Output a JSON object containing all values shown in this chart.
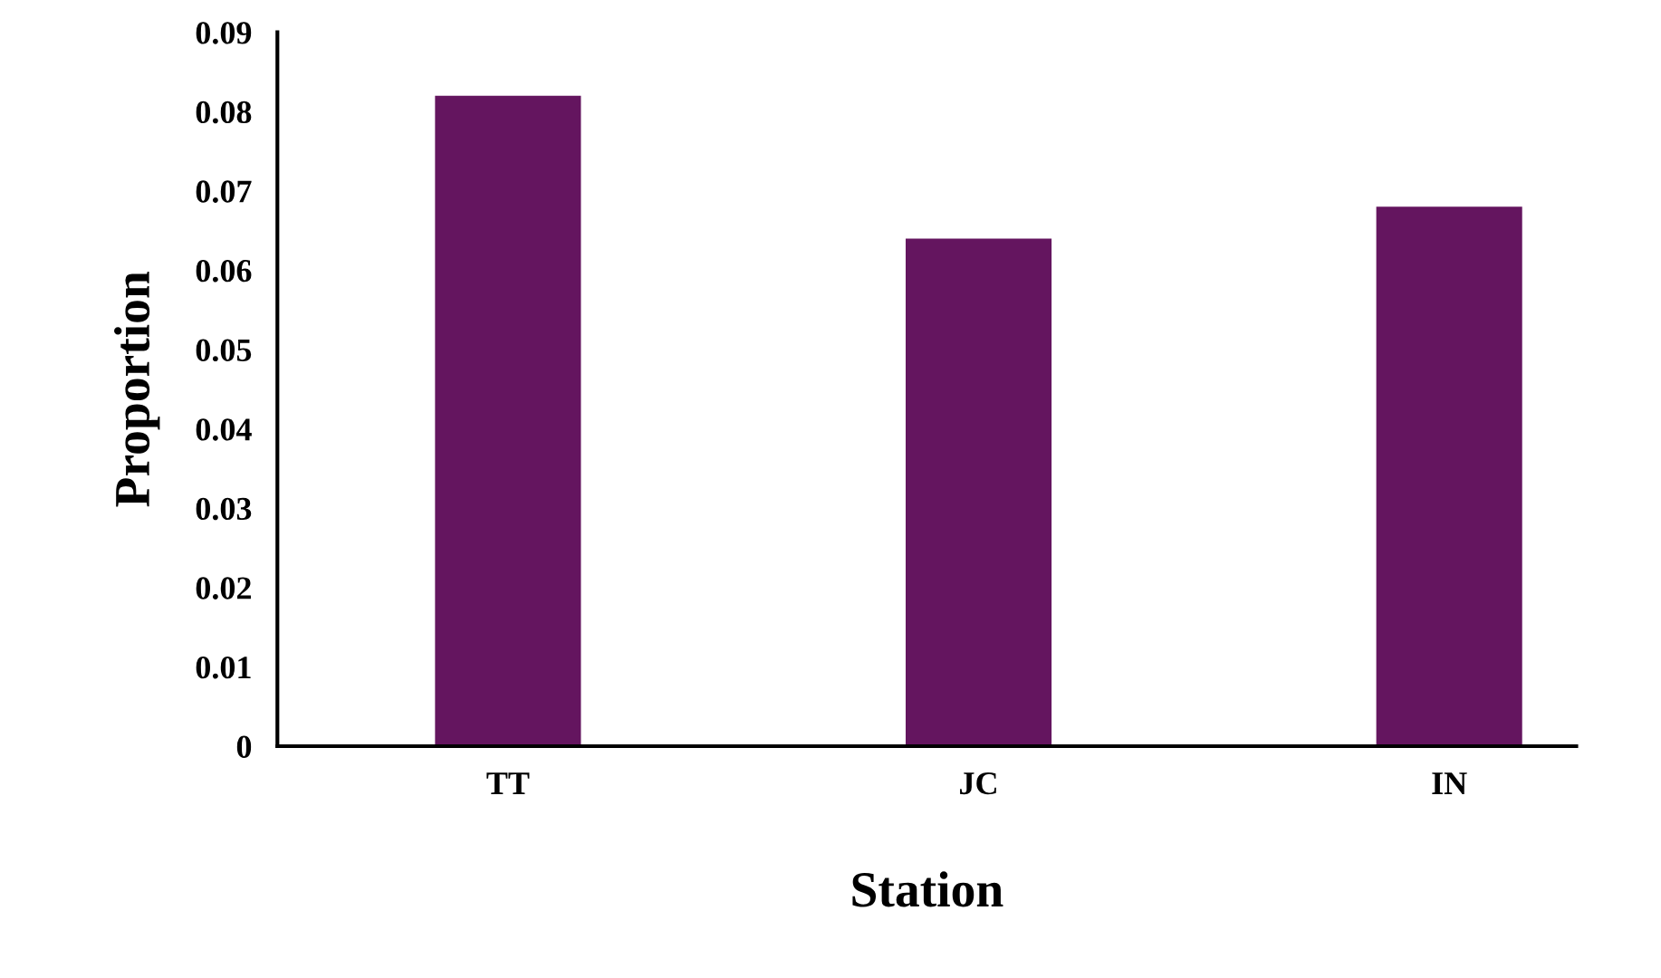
{
  "chart_data": {
    "type": "bar",
    "xlabel": "Station",
    "ylabel": "Proportion",
    "categories": [
      "TT",
      "JC",
      "IN"
    ],
    "values": [
      0.082,
      0.064,
      0.068
    ],
    "color": "#64155f",
    "ylim": [
      0,
      0.09
    ],
    "yticks": [
      {
        "value": 0,
        "label": "0"
      },
      0.01,
      0.02,
      0.03,
      0.04,
      0.05,
      0.06,
      0.07,
      0.08,
      0.09
    ],
    "grid": false,
    "legend": false
  }
}
